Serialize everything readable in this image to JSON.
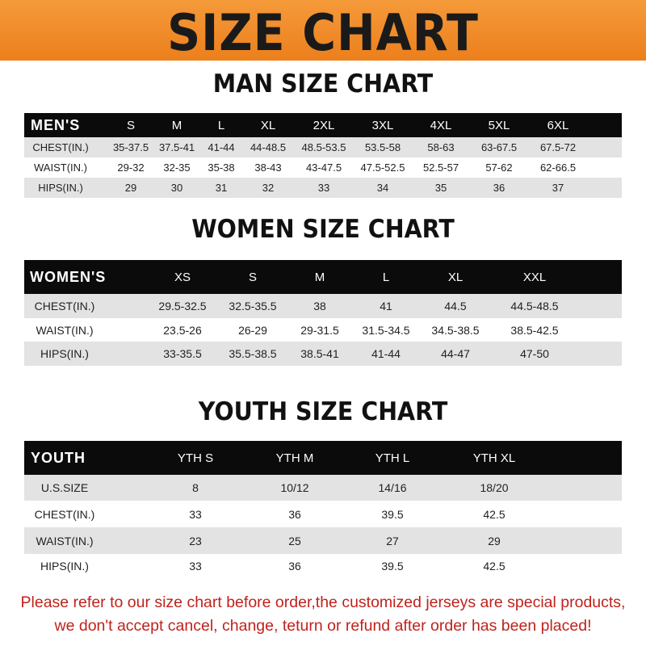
{
  "banner": {
    "title": "SIZE CHART",
    "color": "#f08a24"
  },
  "men": {
    "title": "MAN SIZE CHART",
    "header": [
      "MEN'S",
      "S",
      "M",
      "L",
      "XL",
      "2XL",
      "3XL",
      "4XL",
      "5XL",
      "6XL"
    ],
    "rows": [
      [
        "CHEST(IN.)",
        "35-37.5",
        "37.5-41",
        "41-44",
        "44-48.5",
        "48.5-53.5",
        "53.5-58",
        "58-63",
        "63-67.5",
        "67.5-72"
      ],
      [
        "WAIST(IN.)",
        "29-32",
        "32-35",
        "35-38",
        "38-43",
        "43-47.5",
        "47.5-52.5",
        "52.5-57",
        "57-62",
        "62-66.5"
      ],
      [
        "HIPS(IN.)",
        "29",
        "30",
        "31",
        "32",
        "33",
        "34",
        "35",
        "36",
        "37"
      ]
    ]
  },
  "women": {
    "title": "WOMEN SIZE CHART",
    "header": [
      "WOMEN'S",
      "XS",
      "S",
      "M",
      "L",
      "XL",
      "XXL"
    ],
    "rows": [
      [
        "CHEST(IN.)",
        "29.5-32.5",
        "32.5-35.5",
        "38",
        "41",
        "44.5",
        "44.5-48.5"
      ],
      [
        "WAIST(IN.)",
        "23.5-26",
        "26-29",
        "29-31.5",
        "31.5-34.5",
        "34.5-38.5",
        "38.5-42.5"
      ],
      [
        "HIPS(IN.)",
        "33-35.5",
        "35.5-38.5",
        "38.5-41",
        "41-44",
        "44-47",
        "47-50"
      ]
    ]
  },
  "youth": {
    "title": "YOUTH SIZE CHART",
    "header": [
      "YOUTH",
      "YTH S",
      "YTH M",
      "YTH L",
      "YTH XL"
    ],
    "rows": [
      [
        "U.S.SIZE",
        "8",
        "10/12",
        "14/16",
        "18/20"
      ],
      [
        "CHEST(IN.)",
        "33",
        "36",
        "39.5",
        "42.5"
      ],
      [
        "WAIST(IN.)",
        "23",
        "25",
        "27",
        "29"
      ],
      [
        "HIPS(IN.)",
        "33",
        "36",
        "39.5",
        "42.5"
      ]
    ]
  },
  "note": {
    "line1": "Please refer to our size chart before order,the customized jerseys are special products,",
    "line2": "we don't accept cancel, change, teturn or refund after order has been placed!",
    "color": "#c0221c"
  }
}
